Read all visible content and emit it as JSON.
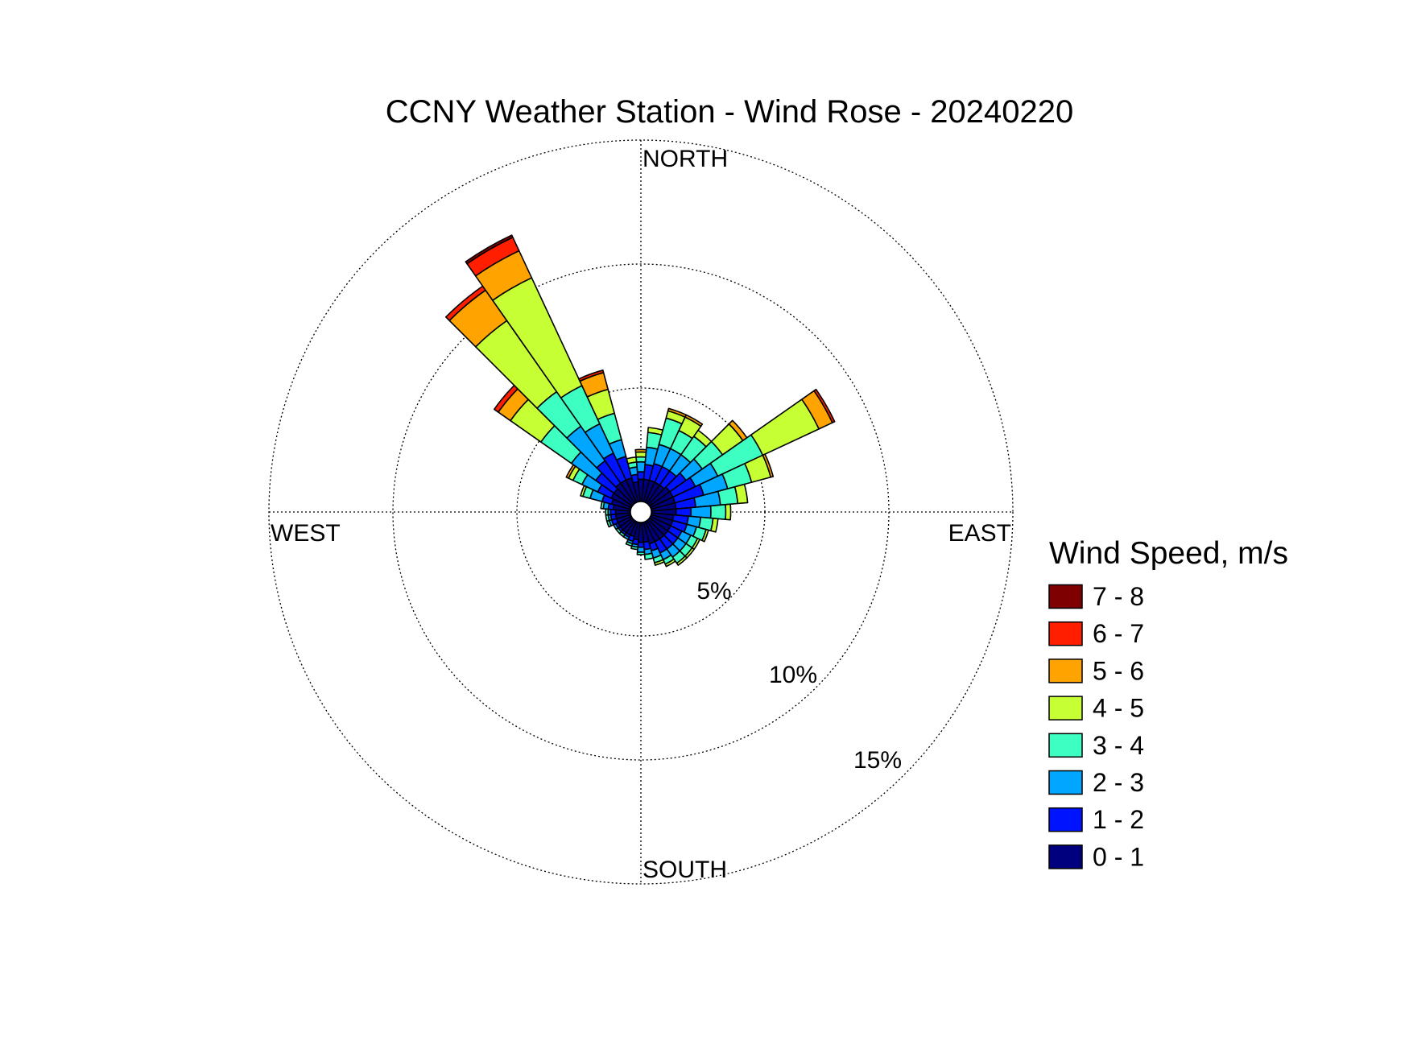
{
  "chart_data": {
    "type": "wind-rose",
    "title": "CCNY Weather Station - Wind Rose - 20240220",
    "direction_labels": {
      "north": "NORTH",
      "east": "EAST",
      "south": "SOUTH",
      "west": "WEST"
    },
    "rings": [
      {
        "value": 5,
        "label": "5%"
      },
      {
        "value": 10,
        "label": "10%"
      },
      {
        "value": 15,
        "label": "15%"
      }
    ],
    "rmax": 15,
    "sector_width_deg": 10,
    "legend": {
      "title": "Wind Speed, m/s",
      "bins": [
        {
          "label": "0 - 1",
          "color": "#00007f"
        },
        {
          "label": "1 - 2",
          "color": "#0013ff"
        },
        {
          "label": "2 - 3",
          "color": "#00a6ff"
        },
        {
          "label": "3 - 4",
          "color": "#3dffc2"
        },
        {
          "label": "4 - 5",
          "color": "#c6ff34"
        },
        {
          "label": "5 - 6",
          "color": "#ffa300"
        },
        {
          "label": "6 - 7",
          "color": "#ff1e00"
        },
        {
          "label": "7 - 8",
          "color": "#7f0000"
        }
      ]
    },
    "sectors": [
      {
        "direction_deg": 0,
        "cumulative_pct": [
          0.9,
          1.2,
          1.6,
          1.8,
          2.0,
          2.1,
          2.1,
          2.1
        ]
      },
      {
        "direction_deg": 10,
        "cumulative_pct": [
          0.9,
          1.5,
          2.2,
          2.8,
          3.0,
          3.0,
          3.0,
          3.0
        ]
      },
      {
        "direction_deg": 20,
        "cumulative_pct": [
          0.9,
          1.6,
          2.4,
          3.5,
          3.8,
          3.9,
          3.9,
          3.9
        ]
      },
      {
        "direction_deg": 30,
        "cumulative_pct": [
          0.9,
          1.6,
          2.4,
          3.2,
          3.8,
          3.9,
          3.9,
          3.9
        ]
      },
      {
        "direction_deg": 40,
        "cumulative_pct": [
          0.9,
          1.6,
          2.4,
          3.3,
          3.6,
          3.6,
          3.6,
          3.6
        ]
      },
      {
        "direction_deg": 50,
        "cumulative_pct": [
          1.0,
          1.8,
          2.6,
          3.6,
          4.6,
          4.8,
          4.8,
          4.8
        ]
      },
      {
        "direction_deg": 60,
        "cumulative_pct": [
          1.0,
          2.0,
          3.0,
          5.0,
          7.5,
          8.1,
          8.2,
          8.2
        ]
      },
      {
        "direction_deg": 70,
        "cumulative_pct": [
          1.0,
          2.2,
          3.2,
          4.2,
          5.0,
          5.1,
          5.1,
          5.1
        ]
      },
      {
        "direction_deg": 80,
        "cumulative_pct": [
          1.0,
          1.8,
          2.8,
          3.5,
          3.9,
          3.9,
          3.9,
          3.9
        ]
      },
      {
        "direction_deg": 90,
        "cumulative_pct": [
          1.0,
          1.6,
          2.4,
          3.0,
          3.2,
          3.2,
          3.2,
          3.2
        ]
      },
      {
        "direction_deg": 100,
        "cumulative_pct": [
          0.9,
          1.5,
          2.0,
          2.5,
          2.7,
          2.7,
          2.7,
          2.7
        ]
      },
      {
        "direction_deg": 110,
        "cumulative_pct": [
          0.9,
          1.5,
          1.9,
          2.3,
          2.4,
          2.4,
          2.4,
          2.4
        ]
      },
      {
        "direction_deg": 120,
        "cumulative_pct": [
          0.9,
          1.4,
          1.8,
          2.1,
          2.2,
          2.2,
          2.2,
          2.2
        ]
      },
      {
        "direction_deg": 130,
        "cumulative_pct": [
          0.9,
          1.4,
          1.8,
          2.1,
          2.2,
          2.2,
          2.2,
          2.2
        ]
      },
      {
        "direction_deg": 140,
        "cumulative_pct": [
          0.9,
          1.4,
          1.8,
          2.1,
          2.2,
          2.2,
          2.2,
          2.2
        ]
      },
      {
        "direction_deg": 150,
        "cumulative_pct": [
          0.9,
          1.4,
          1.7,
          1.9,
          2.0,
          2.0,
          2.0,
          2.0
        ]
      },
      {
        "direction_deg": 160,
        "cumulative_pct": [
          0.9,
          1.2,
          1.5,
          1.7,
          1.8,
          1.8,
          1.8,
          1.8
        ]
      },
      {
        "direction_deg": 170,
        "cumulative_pct": [
          0.8,
          1.1,
          1.3,
          1.5,
          1.5,
          1.5,
          1.5,
          1.5
        ]
      },
      {
        "direction_deg": 180,
        "cumulative_pct": [
          0.8,
          1.0,
          1.2,
          1.3,
          1.3,
          1.3,
          1.3,
          1.3
        ]
      },
      {
        "direction_deg": 190,
        "cumulative_pct": [
          0.7,
          0.9,
          1.0,
          1.1,
          1.1,
          1.1,
          1.1,
          1.1
        ]
      },
      {
        "direction_deg": 200,
        "cumulative_pct": [
          0.6,
          0.8,
          0.9,
          1.0,
          1.0,
          1.0,
          1.0,
          1.0
        ]
      },
      {
        "direction_deg": 210,
        "cumulative_pct": [
          0.6,
          0.7,
          0.8,
          0.8,
          0.8,
          0.8,
          0.8,
          0.8
        ]
      },
      {
        "direction_deg": 220,
        "cumulative_pct": [
          0.6,
          0.7,
          0.7,
          0.8,
          0.8,
          0.8,
          0.8,
          0.8
        ]
      },
      {
        "direction_deg": 230,
        "cumulative_pct": [
          0.6,
          0.7,
          0.7,
          0.8,
          0.8,
          0.8,
          0.8,
          0.8
        ]
      },
      {
        "direction_deg": 240,
        "cumulative_pct": [
          0.6,
          0.7,
          0.8,
          0.8,
          0.8,
          0.8,
          0.8,
          0.8
        ]
      },
      {
        "direction_deg": 250,
        "cumulative_pct": [
          0.6,
          0.8,
          0.9,
          1.0,
          1.0,
          1.0,
          1.0,
          1.0
        ]
      },
      {
        "direction_deg": 260,
        "cumulative_pct": [
          0.6,
          0.8,
          0.9,
          1.0,
          1.0,
          1.0,
          1.0,
          1.0
        ]
      },
      {
        "direction_deg": 270,
        "cumulative_pct": [
          0.6,
          0.8,
          0.9,
          1.0,
          1.0,
          1.0,
          1.0,
          1.0
        ]
      },
      {
        "direction_deg": 280,
        "cumulative_pct": [
          0.7,
          0.9,
          1.1,
          1.2,
          1.2,
          1.2,
          1.2,
          1.2
        ]
      },
      {
        "direction_deg": 290,
        "cumulative_pct": [
          0.8,
          1.2,
          1.7,
          2.0,
          2.1,
          2.1,
          2.1,
          2.1
        ]
      },
      {
        "direction_deg": 300,
        "cumulative_pct": [
          0.9,
          1.5,
          2.2,
          2.6,
          2.8,
          2.9,
          2.9,
          2.9
        ]
      },
      {
        "direction_deg": 310,
        "cumulative_pct": [
          0.9,
          1.8,
          3.0,
          4.5,
          6.0,
          6.6,
          6.8,
          6.8
        ]
      },
      {
        "direction_deg": 320,
        "cumulative_pct": [
          1.0,
          2.1,
          3.8,
          5.5,
          9.0,
          10.5,
          10.7,
          10.7
        ]
      },
      {
        "direction_deg": 330,
        "cumulative_pct": [
          1.0,
          2.2,
          3.5,
          5.2,
          10.0,
          11.2,
          11.8,
          11.9
        ]
      },
      {
        "direction_deg": 340,
        "cumulative_pct": [
          1.0,
          1.9,
          2.6,
          3.7,
          4.7,
          5.4,
          5.5,
          5.5
        ]
      },
      {
        "direction_deg": 350,
        "cumulative_pct": [
          0.8,
          1.1,
          1.4,
          1.6,
          1.8,
          1.8,
          1.8,
          1.8
        ]
      }
    ]
  }
}
